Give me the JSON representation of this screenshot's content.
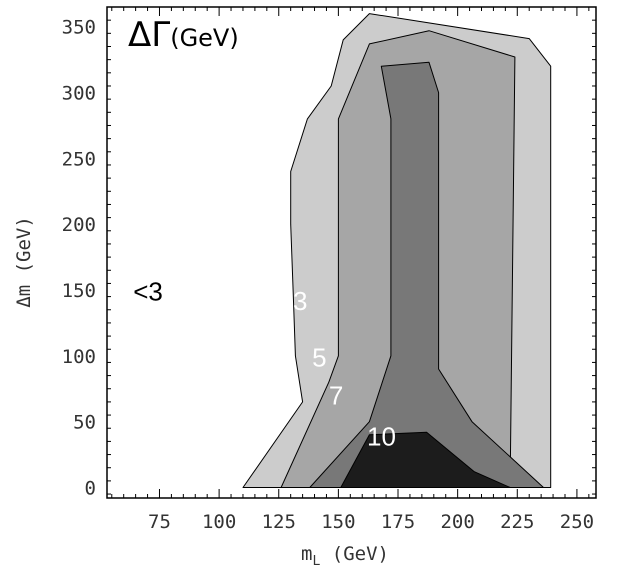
{
  "chart_data": {
    "type": "contour",
    "title": "ΔΓ(GeV)",
    "title_symbol": "ΔΓ",
    "title_unit": "(GeV)",
    "xlabel": "m",
    "xlabel_sub": "L",
    "xlabel_unit": " (GeV)",
    "ylabel": "Δm  (GeV)",
    "xlim": [
      53,
      258
    ],
    "ylim": [
      -8,
      365
    ],
    "x_ticks": [
      75,
      100,
      125,
      150,
      175,
      200,
      225,
      250
    ],
    "y_ticks": [
      0,
      50,
      100,
      150,
      200,
      250,
      300,
      350
    ],
    "grid": false,
    "levels": [
      {
        "value": 3,
        "fill": "#cccccc",
        "boundary": [
          [
            110,
            0
          ],
          [
            135,
            65
          ],
          [
            132,
            100
          ],
          [
            131,
            150
          ],
          [
            130,
            200
          ],
          [
            130,
            240
          ],
          [
            137,
            280
          ],
          [
            147,
            305
          ],
          [
            152,
            340
          ],
          [
            163,
            360
          ],
          [
            230,
            341
          ],
          [
            239,
            320
          ],
          [
            239,
            0
          ]
        ]
      },
      {
        "value": 5,
        "fill": "#a6a6a6",
        "boundary": [
          [
            126,
            0
          ],
          [
            146,
            80
          ],
          [
            150,
            100
          ],
          [
            150,
            280
          ],
          [
            163,
            337
          ],
          [
            188,
            347
          ],
          [
            224,
            327
          ],
          [
            222,
            0
          ]
        ]
      },
      {
        "value": 7,
        "fill": "#787878",
        "boundary": [
          [
            138,
            0
          ],
          [
            163,
            50
          ],
          [
            172,
            100
          ],
          [
            172,
            280
          ],
          [
            168,
            320
          ],
          [
            188,
            323
          ],
          [
            192,
            300
          ],
          [
            192,
            90
          ],
          [
            206,
            50
          ],
          [
            236,
            0
          ]
        ]
      },
      {
        "value": 10,
        "fill": "#1c1c1c",
        "boundary": [
          [
            151,
            0
          ],
          [
            163,
            40
          ],
          [
            187,
            42
          ],
          [
            207,
            12
          ],
          [
            222,
            0
          ]
        ]
      }
    ],
    "annotations": [
      {
        "text": "<3",
        "x": 64,
        "y": 142,
        "color": "#000000"
      },
      {
        "text": "3",
        "x": 131,
        "y": 135,
        "color": "#ffffff"
      },
      {
        "text": "5",
        "x": 139,
        "y": 92,
        "color": "#ffffff"
      },
      {
        "text": "7",
        "x": 146,
        "y": 63,
        "color": "#ffffff"
      },
      {
        "text": "10",
        "x": 162,
        "y": 32,
        "color": "#ffffff"
      }
    ]
  }
}
